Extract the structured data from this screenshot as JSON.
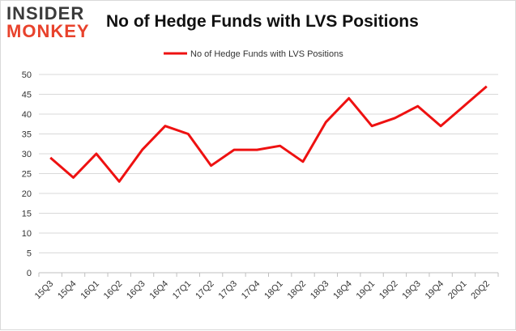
{
  "logo": {
    "line1": "INSIDER",
    "line2": "MONKEY"
  },
  "colors": {
    "series": "#ee1111",
    "grid": "#d9d9d9",
    "text": "#333333",
    "logo_dark": "#3a3a3a",
    "logo_accent": "#e8422c"
  },
  "chart_data": {
    "type": "line",
    "title": "No of Hedge Funds with LVS Positions",
    "xlabel": "",
    "ylabel": "",
    "categories": [
      "15Q3",
      "15Q4",
      "16Q1",
      "16Q2",
      "16Q3",
      "16Q4",
      "17Q1",
      "17Q2",
      "17Q3",
      "17Q4",
      "18Q1",
      "18Q2",
      "18Q3",
      "18Q4",
      "19Q1",
      "19Q2",
      "19Q3",
      "19Q4",
      "20Q1",
      "20Q2"
    ],
    "series": [
      {
        "name": "No of Hedge Funds with LVS Positions",
        "color": "#ee1111",
        "values": [
          29,
          24,
          30,
          23,
          31,
          37,
          35,
          27,
          31,
          31,
          32,
          28,
          38,
          44,
          37,
          39,
          42,
          37,
          42,
          47
        ]
      }
    ],
    "ylim": [
      0,
      50
    ],
    "yticks": [
      0,
      5,
      10,
      15,
      20,
      25,
      30,
      35,
      40,
      45,
      50
    ],
    "grid": "horizontal",
    "legend": "top-center"
  }
}
